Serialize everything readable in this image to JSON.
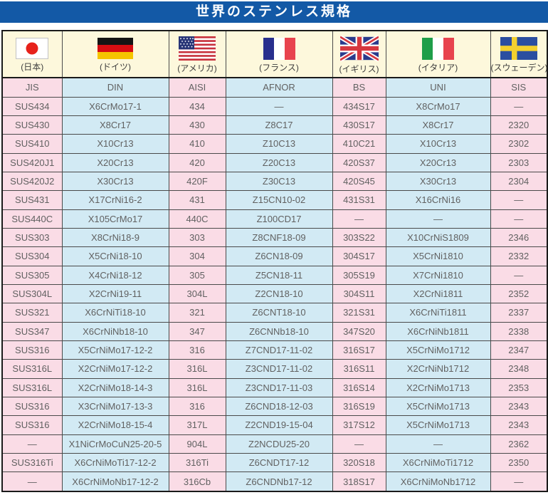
{
  "title": "世界のステンレス規格",
  "header": {
    "countries": [
      {
        "label": "(日本)",
        "flag": "japan-flag"
      },
      {
        "label": "(ドイツ)",
        "flag": "germany-flag"
      },
      {
        "label": "(アメリカ)",
        "flag": "usa-flag"
      },
      {
        "label": "(フランス)",
        "flag": "france-flag"
      },
      {
        "label": "(イギリス)",
        "flag": "uk-flag"
      },
      {
        "label": "(イタリア)",
        "flag": "italy-flag"
      },
      {
        "label": "(スウェーデン)",
        "flag": "sweden-flag"
      }
    ]
  },
  "table": {
    "columns": [
      "JIS",
      "DIN",
      "AISI",
      "AFNOR",
      "BS",
      "UNI",
      "SIS"
    ],
    "rows": [
      [
        "SUS434",
        "X6CrMo17-1",
        "434",
        "—",
        "434S17",
        "X8CrMo17",
        "—"
      ],
      [
        "SUS430",
        "X8Cr17",
        "430",
        "Z8C17",
        "430S17",
        "X8Cr17",
        "2320"
      ],
      [
        "SUS410",
        "X10Cr13",
        "410",
        "Z10C13",
        "410C21",
        "X10Cr13",
        "2302"
      ],
      [
        "SUS420J1",
        "X20Cr13",
        "420",
        "Z20C13",
        "420S37",
        "X20Cr13",
        "2303"
      ],
      [
        "SUS420J2",
        "X30Cr13",
        "420F",
        "Z30C13",
        "420S45",
        "X30Cr13",
        "2304"
      ],
      [
        "SUS431",
        "X17CrNi16-2",
        "431",
        "Z15CN10-02",
        "431S31",
        "X16CrNi16",
        "—"
      ],
      [
        "SUS440C",
        "X105CrMo17",
        "440C",
        "Z100CD17",
        "—",
        "—",
        "—"
      ],
      [
        "SUS303",
        "X8CrNi18-9",
        "303",
        "Z8CNF18-09",
        "303S22",
        "X10CrNiS1809",
        "2346"
      ],
      [
        "SUS304",
        "X5CrNi18-10",
        "304",
        "Z6CN18-09",
        "304S17",
        "X5CrNi1810",
        "2332"
      ],
      [
        "SUS305",
        "X4CrNi18-12",
        "305",
        "Z5CN18-11",
        "305S19",
        "X7CrNi1810",
        "—"
      ],
      [
        "SUS304L",
        "X2CrNi19-11",
        "304L",
        "Z2CN18-10",
        "304S11",
        "X2CrNi1811",
        "2352"
      ],
      [
        "SUS321",
        "X6CrNiTi18-10",
        "321",
        "Z6CNT18-10",
        "321S31",
        "X6CrNiTi1811",
        "2337"
      ],
      [
        "SUS347",
        "X6CrNiNb18-10",
        "347",
        "Z6CNNb18-10",
        "347S20",
        "X6CrNiNb1811",
        "2338"
      ],
      [
        "SUS316",
        "X5CrNiMo17-12-2",
        "316",
        "Z7CND17-11-02",
        "316S17",
        "X5CrNiMo1712",
        "2347"
      ],
      [
        "SUS316L",
        "X2CrNiMo17-12-2",
        "316L",
        "Z3CND17-11-02",
        "316S11",
        "X2CrNiNb1712",
        "2348"
      ],
      [
        "SUS316L",
        "X2CrNiMo18-14-3",
        "316L",
        "Z3CND17-11-03",
        "316S14",
        "X2CrNiMo1713",
        "2353"
      ],
      [
        "SUS316",
        "X3CrNiMo17-13-3",
        "316",
        "Z6CND18-12-03",
        "316S19",
        "X5CrNiMo1713",
        "2343"
      ],
      [
        "SUS316",
        "X2CrNiMo18-15-4",
        "317L",
        "Z2CND19-15-04",
        "317S12",
        "X5CrNiMo1713",
        "2343"
      ],
      [
        "—",
        "X1NiCrMoCuN25-20-5",
        "904L",
        "Z2NCDU25-20",
        "—",
        "—",
        "2362"
      ],
      [
        "SUS316Ti",
        "X6CrNiMoTi17-12-2",
        "316Ti",
        "Z6CNDT17-12",
        "320S18",
        "X6CrNiMoTi1712",
        "2350"
      ],
      [
        "—",
        "X6CrNiMoNb17-12-2",
        "316Cb",
        "Z6CNDNb17-12",
        "318S17",
        "X6CrNiMoNb1712",
        "—"
      ]
    ]
  },
  "colors": {
    "banner_blue": "#1359a6",
    "header_cream": "#fdf8dc",
    "cell_pink": "#fadce6",
    "cell_blue": "#d2eaf4",
    "grid_line": "#4a4a4a",
    "text_gray": "#616161"
  }
}
